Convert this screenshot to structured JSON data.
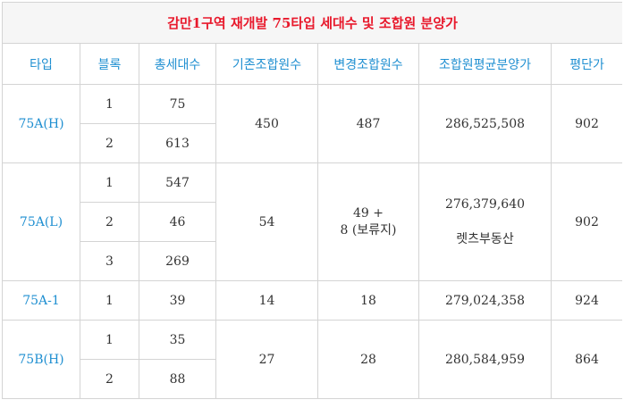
{
  "title": "감만1구역 재개발 75타입 세대수 및 조합원 분양가",
  "headers": [
    "타입",
    "블록",
    "총세대수",
    "기존조합원수",
    "변경조합원수",
    "조합원평균분양가",
    "평단가"
  ],
  "groups": [
    {
      "type": "75A(H)",
      "blocks": [
        {
          "block": "1",
          "units": "75"
        },
        {
          "block": "2",
          "units": "613"
        }
      ],
      "existing": "450",
      "changed": "487",
      "avg_price": "286,525,508",
      "price_per_pyeong": "902"
    },
    {
      "type": "75A(L)",
      "blocks": [
        {
          "block": "1",
          "units": "547"
        },
        {
          "block": "2",
          "units": "46"
        },
        {
          "block": "3",
          "units": "269"
        }
      ],
      "existing": "54",
      "changed_line1": "49 +",
      "changed_line2": "8 (보류지)",
      "avg_price": "276,379,640",
      "avg_price_note": "렛츠부동산",
      "price_per_pyeong": "902"
    },
    {
      "type": "75A-1",
      "blocks": [
        {
          "block": "1",
          "units": "39"
        }
      ],
      "existing": "14",
      "changed": "18",
      "avg_price": "279,024,358",
      "price_per_pyeong": "924"
    },
    {
      "type": "75B(H)",
      "blocks": [
        {
          "block": "1",
          "units": "35"
        },
        {
          "block": "2",
          "units": "88"
        }
      ],
      "existing": "27",
      "changed": "28",
      "avg_price": "280,584,959",
      "price_per_pyeong": "864"
    }
  ],
  "colors": {
    "title": "#e8192c",
    "header": "#1f8fd1",
    "type": "#1f8fd1",
    "border": "#d4d4d4",
    "title_bg": "#f6f6f6"
  }
}
